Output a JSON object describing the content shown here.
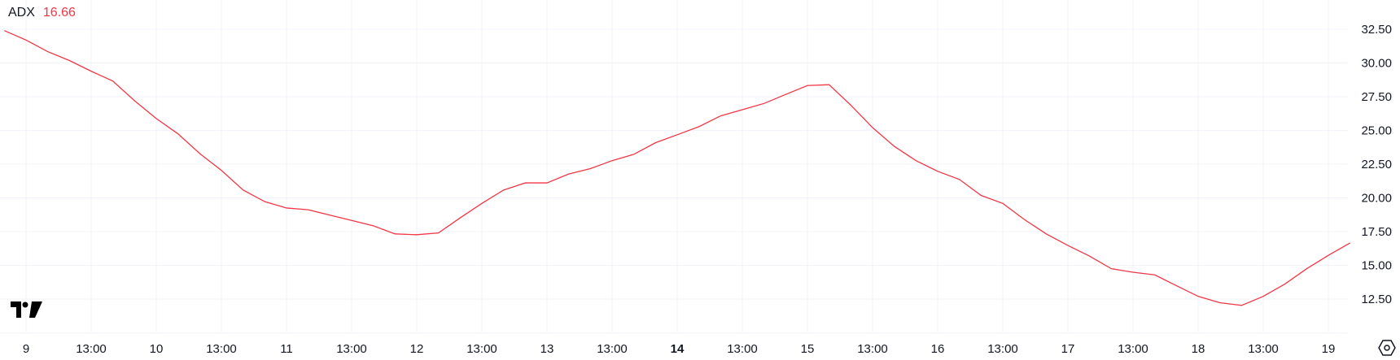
{
  "legend": {
    "name": "ADX",
    "value": "16.66"
  },
  "colors": {
    "line": "#f23645",
    "value_text": "#f23645",
    "grid": "#f0f3fa",
    "text": "#131722"
  },
  "icons": {
    "logo": "tradingview-logo-icon",
    "settings": "settings-hexagon-icon"
  },
  "chart_data": {
    "type": "line",
    "title": "",
    "xlabel": "",
    "ylabel": "",
    "ylim": [
      9.97,
      34.67
    ],
    "grid": true,
    "y_axis_position": "right",
    "y_ticks": [
      "12.50",
      "15.00",
      "17.50",
      "20.00",
      "22.50",
      "25.00",
      "27.50",
      "30.00",
      "32.50"
    ],
    "x_ticks": [
      {
        "label": "9",
        "day": 9,
        "hour": 1,
        "bold": false
      },
      {
        "label": "13:00",
        "day": 9,
        "hour": 13,
        "bold": false
      },
      {
        "label": "10",
        "day": 10,
        "hour": 1,
        "bold": false
      },
      {
        "label": "13:00",
        "day": 10,
        "hour": 13,
        "bold": false
      },
      {
        "label": "11",
        "day": 11,
        "hour": 1,
        "bold": false
      },
      {
        "label": "13:00",
        "day": 11,
        "hour": 13,
        "bold": false
      },
      {
        "label": "12",
        "day": 12,
        "hour": 1,
        "bold": false
      },
      {
        "label": "13:00",
        "day": 12,
        "hour": 13,
        "bold": false
      },
      {
        "label": "13",
        "day": 13,
        "hour": 1,
        "bold": false
      },
      {
        "label": "13:00",
        "day": 13,
        "hour": 13,
        "bold": false
      },
      {
        "label": "14",
        "day": 14,
        "hour": 1,
        "bold": true
      },
      {
        "label": "13:00",
        "day": 14,
        "hour": 13,
        "bold": false
      },
      {
        "label": "15",
        "day": 15,
        "hour": 1,
        "bold": false
      },
      {
        "label": "13:00",
        "day": 15,
        "hour": 13,
        "bold": false
      },
      {
        "label": "16",
        "day": 16,
        "hour": 1,
        "bold": false
      },
      {
        "label": "13:00",
        "day": 16,
        "hour": 13,
        "bold": false
      },
      {
        "label": "17",
        "day": 17,
        "hour": 1,
        "bold": false
      },
      {
        "label": "13:00",
        "day": 17,
        "hour": 13,
        "bold": false
      },
      {
        "label": "18",
        "day": 18,
        "hour": 1,
        "bold": false
      },
      {
        "label": "13:00",
        "day": 18,
        "hour": 13,
        "bold": false
      },
      {
        "label": "19",
        "day": 19,
        "hour": 1,
        "bold": false
      }
    ],
    "series": [
      {
        "start": {
          "day": 8,
          "hour": 21
        },
        "interval_hours": 4,
        "values": [
          32.4,
          31.7,
          30.84,
          30.18,
          29.39,
          28.66,
          27.2,
          25.88,
          24.75,
          23.29,
          22.04,
          20.58,
          19.72,
          19.25,
          19.12,
          18.72,
          18.33,
          17.93,
          17.33,
          17.27,
          17.4,
          18.52,
          19.59,
          20.58,
          21.11,
          21.11,
          21.77,
          22.17,
          22.76,
          23.23,
          24.09,
          24.68,
          25.28,
          26.08,
          26.54,
          27.0,
          27.67,
          28.33,
          28.39,
          26.87,
          25.21,
          23.82,
          22.76,
          21.97,
          21.37,
          20.18,
          19.59,
          18.39,
          17.33,
          16.47,
          15.68,
          14.75,
          14.49,
          14.29,
          13.49,
          12.7,
          12.23,
          12.03,
          12.7,
          13.62,
          14.75,
          15.74,
          16.66
        ]
      }
    ]
  }
}
